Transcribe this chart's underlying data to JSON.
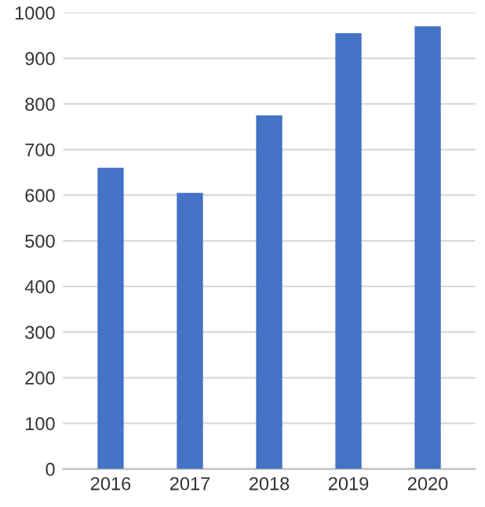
{
  "chart_data": {
    "type": "bar",
    "categories": [
      "2016",
      "2017",
      "2018",
      "2019",
      "2020"
    ],
    "values": [
      660,
      605,
      775,
      955,
      970
    ],
    "color": "#4472c4",
    "ylim": [
      0,
      1000
    ],
    "yticks": [
      0,
      100,
      200,
      300,
      400,
      500,
      600,
      700,
      800,
      900,
      1000
    ],
    "grid": "y",
    "legend": false
  }
}
